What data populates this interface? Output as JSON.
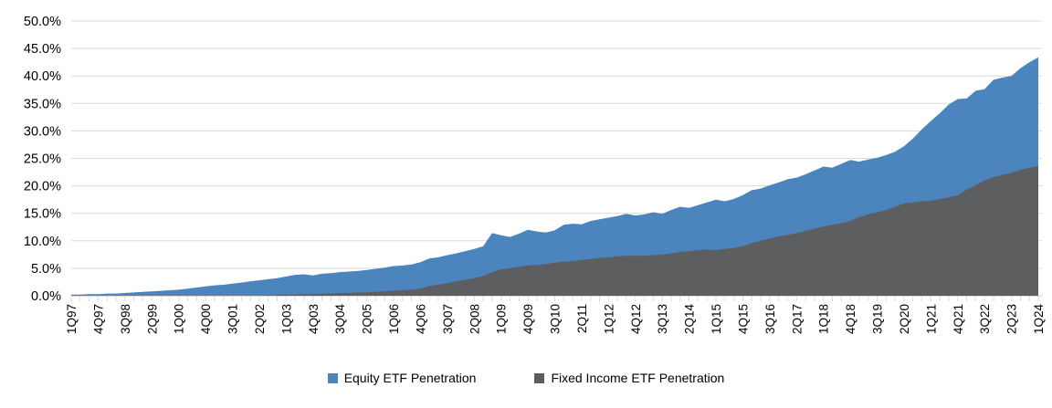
{
  "chart_data": {
    "type": "area",
    "title": "",
    "xlabel": "",
    "ylabel": "",
    "grid": "horizontal",
    "legend_position": "bottom",
    "ylim": [
      0,
      50
    ],
    "y_tick_values": [
      0,
      5,
      10,
      15,
      20,
      25,
      30,
      35,
      40,
      45,
      50
    ],
    "y_tick_labels": [
      "0.0%",
      "5.0%",
      "10.0%",
      "15.0%",
      "20.0%",
      "25.0%",
      "30.0%",
      "35.0%",
      "40.0%",
      "45.0%",
      "50.0%"
    ],
    "x_tick_every": 3,
    "categories": [
      "1Q97",
      "2Q97",
      "3Q97",
      "4Q97",
      "1Q98",
      "2Q98",
      "3Q98",
      "4Q98",
      "1Q99",
      "2Q99",
      "3Q99",
      "4Q99",
      "1Q00",
      "2Q00",
      "3Q00",
      "4Q00",
      "1Q01",
      "2Q01",
      "3Q01",
      "4Q01",
      "1Q02",
      "2Q02",
      "3Q02",
      "4Q02",
      "1Q03",
      "2Q03",
      "3Q03",
      "4Q03",
      "1Q04",
      "2Q04",
      "3Q04",
      "4Q04",
      "1Q05",
      "2Q05",
      "3Q05",
      "4Q05",
      "1Q06",
      "2Q06",
      "3Q06",
      "4Q06",
      "1Q07",
      "2Q07",
      "3Q07",
      "4Q07",
      "1Q08",
      "2Q08",
      "3Q08",
      "4Q08",
      "1Q09",
      "2Q09",
      "3Q09",
      "4Q09",
      "1Q10",
      "2Q10",
      "3Q10",
      "4Q10",
      "1Q11",
      "2Q11",
      "3Q11",
      "4Q11",
      "1Q12",
      "2Q12",
      "3Q12",
      "4Q12",
      "1Q13",
      "2Q13",
      "3Q13",
      "4Q13",
      "1Q14",
      "2Q14",
      "3Q14",
      "4Q14",
      "1Q15",
      "2Q15",
      "3Q15",
      "4Q15",
      "1Q16",
      "2Q16",
      "3Q16",
      "4Q16",
      "1Q17",
      "2Q17",
      "3Q17",
      "4Q17",
      "1Q18",
      "2Q18",
      "3Q18",
      "4Q18",
      "1Q19",
      "2Q19",
      "3Q19",
      "4Q19",
      "1Q20",
      "2Q20",
      "3Q20",
      "4Q20",
      "1Q21",
      "2Q21",
      "3Q21",
      "4Q21",
      "1Q22",
      "2Q22",
      "3Q22",
      "4Q22",
      "1Q23",
      "2Q23",
      "3Q23",
      "4Q23",
      "1Q24"
    ],
    "series": [
      {
        "name": "Equity ETF Penetration",
        "color": "#4C84BE",
        "values": [
          0.2,
          0.2,
          0.3,
          0.3,
          0.4,
          0.4,
          0.5,
          0.6,
          0.7,
          0.8,
          0.9,
          1.0,
          1.1,
          1.3,
          1.5,
          1.7,
          1.9,
          2.0,
          2.2,
          2.4,
          2.6,
          2.8,
          3.0,
          3.2,
          3.5,
          3.8,
          3.9,
          3.7,
          4.0,
          4.1,
          4.3,
          4.4,
          4.5,
          4.7,
          4.9,
          5.1,
          5.4,
          5.5,
          5.7,
          6.1,
          6.8,
          7.0,
          7.4,
          7.7,
          8.1,
          8.5,
          9.0,
          11.4,
          11.0,
          10.7,
          11.3,
          12.0,
          11.7,
          11.5,
          11.9,
          12.9,
          13.1,
          13.0,
          13.6,
          13.9,
          14.2,
          14.5,
          14.9,
          14.6,
          14.8,
          15.2,
          14.9,
          15.6,
          16.2,
          16.0,
          16.5,
          17.0,
          17.5,
          17.2,
          17.6,
          18.3,
          19.2,
          19.5,
          20.1,
          20.6,
          21.2,
          21.5,
          22.1,
          22.8,
          23.5,
          23.3,
          24.0,
          24.7,
          24.4,
          24.8,
          25.1,
          25.6,
          26.2,
          27.2,
          28.6,
          30.3,
          31.8,
          33.2,
          34.8,
          35.8,
          35.9,
          37.3,
          37.6,
          39.3,
          39.7,
          40.0,
          41.4,
          42.5,
          43.4
        ]
      },
      {
        "name": "Fixed Income ETF Penetration",
        "color": "#5D5E60",
        "values": [
          0.0,
          0.0,
          0.0,
          0.0,
          0.0,
          0.0,
          0.0,
          0.0,
          0.0,
          0.0,
          0.0,
          0.0,
          0.0,
          0.0,
          0.0,
          0.0,
          0.0,
          0.0,
          0.0,
          0.0,
          0.0,
          0.0,
          0.1,
          0.1,
          0.2,
          0.2,
          0.3,
          0.3,
          0.4,
          0.4,
          0.5,
          0.5,
          0.6,
          0.6,
          0.7,
          0.8,
          0.9,
          1.0,
          1.1,
          1.3,
          1.8,
          2.0,
          2.3,
          2.6,
          2.9,
          3.2,
          3.6,
          4.3,
          4.8,
          5.0,
          5.3,
          5.5,
          5.6,
          5.8,
          6.0,
          6.2,
          6.3,
          6.5,
          6.7,
          6.9,
          7.0,
          7.2,
          7.3,
          7.3,
          7.3,
          7.4,
          7.5,
          7.7,
          8.0,
          8.1,
          8.3,
          8.4,
          8.3,
          8.5,
          8.7,
          9.0,
          9.6,
          10.0,
          10.4,
          10.8,
          11.1,
          11.4,
          11.8,
          12.2,
          12.6,
          12.9,
          13.2,
          13.6,
          14.3,
          14.8,
          15.2,
          15.6,
          16.2,
          16.8,
          17.0,
          17.2,
          17.3,
          17.6,
          17.9,
          18.3,
          19.3,
          20.1,
          21.0,
          21.6,
          22.0,
          22.4,
          22.9,
          23.3,
          23.6
        ]
      }
    ],
    "colors": {
      "gridline": "#D9D9D9",
      "tick": "#D9D9D9",
      "axis_text": "#000000"
    }
  }
}
